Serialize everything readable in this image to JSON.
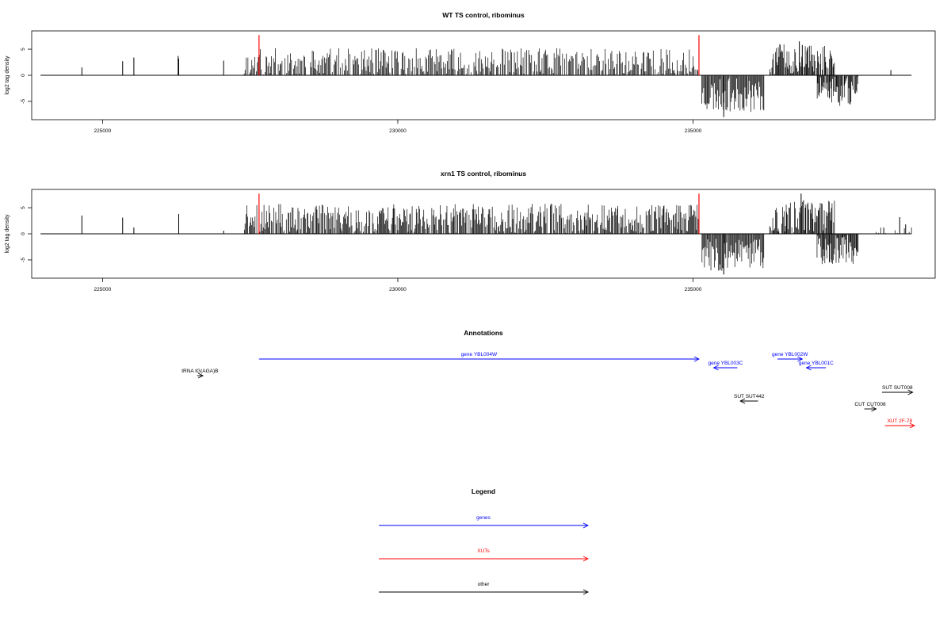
{
  "chart_data": [
    {
      "type": "bar",
      "title": "WT TS control, ribominus",
      "ylabel": "log2 tag density",
      "xlabel": "",
      "xlim": [
        223800,
        239100
      ],
      "ylim": [
        -8.5,
        8.5
      ],
      "xticks": [
        225000,
        230000,
        235000
      ],
      "xtick_labels": [
        "225000",
        "230000",
        "235000"
      ],
      "yticks": [
        -5,
        0,
        5
      ],
      "ytick_labels": [
        "-5",
        "0",
        "5"
      ],
      "baseline": {
        "x": [
          223950,
          238700
        ]
      },
      "markers": {
        "x": [
          227650,
          235100
        ],
        "top": 7.7,
        "color": "#ff0000"
      },
      "series": [
        {
          "color": "#000000",
          "x": [
            224650,
            225340,
            225530,
            226280,
            226290,
            227050,
            227640,
            238350
          ],
          "values": [
            1.5,
            2.7,
            3.4,
            3.7,
            3.2,
            2.8,
            3.5,
            1.0
          ]
        }
      ],
      "regions": [
        {
          "x": [
            227400,
            235100
          ],
          "step": 16,
          "mean": 2.0,
          "amp": 3.2,
          "seed": 11,
          "note": "dense plus-strand signal"
        },
        {
          "x": [
            235150,
            236200
          ],
          "step": 14,
          "mean": -3.8,
          "amp": 3.2,
          "seed": 23,
          "note": "minus-strand signal"
        },
        {
          "x": [
            236300,
            237400
          ],
          "step": 12,
          "mean": 2.8,
          "amp": 3.2,
          "seed": 37,
          "note": "plus-strand signal"
        },
        {
          "x": [
            237100,
            237800
          ],
          "step": 12,
          "mean": -3.0,
          "amp": 3.0,
          "seed": 51,
          "note": "minus-strand signal"
        }
      ],
      "peaks": [
        {
          "x": [
            236800,
            236850
          ],
          "values": [
            6.5,
            5.8
          ]
        },
        {
          "x": [
            235520
          ],
          "values": [
            -8.0
          ]
        }
      ]
    },
    {
      "type": "bar",
      "title": "xrn1 TS control, ribominus",
      "ylabel": "log2 tag density",
      "xlabel": "",
      "xlim": [
        223800,
        239100
      ],
      "ylim": [
        -8.5,
        8.5
      ],
      "xticks": [
        225000,
        230000,
        235000
      ],
      "xtick_labels": [
        "225000",
        "230000",
        "235000"
      ],
      "yticks": [
        -5,
        0,
        5
      ],
      "ytick_labels": [
        "-5",
        "0",
        "5"
      ],
      "baseline": {
        "x": [
          223950,
          238700
        ]
      },
      "markers": {
        "x": [
          227650,
          235100
        ],
        "top": 7.7,
        "color": "#ff0000"
      },
      "series": [
        {
          "color": "#000000",
          "x": [
            224650,
            225340,
            225530,
            226290,
            227050,
            238230,
            238500,
            238600
          ],
          "values": [
            3.5,
            3.1,
            1.2,
            3.8,
            0.6,
            1.2,
            3.2,
            1.8
          ]
        }
      ],
      "regions": [
        {
          "x": [
            227400,
            235100
          ],
          "step": 14,
          "mean": 2.4,
          "amp": 3.4,
          "seed": 71,
          "note": "dense plus-strand signal"
        },
        {
          "x": [
            235150,
            236200
          ],
          "step": 14,
          "mean": -4.0,
          "amp": 3.2,
          "seed": 83,
          "note": "minus-strand signal"
        },
        {
          "x": [
            236300,
            237400
          ],
          "step": 12,
          "mean": 3.0,
          "amp": 3.4,
          "seed": 97,
          "note": "plus-strand signal"
        },
        {
          "x": [
            237100,
            237800
          ],
          "step": 12,
          "mean": -3.2,
          "amp": 3.0,
          "seed": 101,
          "note": "minus-strand signal"
        },
        {
          "x": [
            238100,
            238700
          ],
          "step": 40,
          "mean": 0.8,
          "amp": 1.0,
          "seed": 113,
          "note": "sparse right signal"
        }
      ],
      "peaks": [
        {
          "x": [
            236830,
            236870
          ],
          "values": [
            7.7,
            6.4
          ]
        },
        {
          "x": [
            235520
          ],
          "values": [
            -7.8
          ]
        }
      ]
    }
  ],
  "annotations": {
    "title": "Annotations",
    "items": [
      {
        "label": "gene YBL004W",
        "start": 227650,
        "end": 235100,
        "strand": "+",
        "color": "#0000ff",
        "row": 0
      },
      {
        "label": "gene YBL003C",
        "start": 235350,
        "end": 235750,
        "strand": "-",
        "color": "#0000ff",
        "row": 1
      },
      {
        "label": "gene YBL002W",
        "start": 236430,
        "end": 236850,
        "strand": "+",
        "color": "#0000ff",
        "row": 0
      },
      {
        "label": "gene YBL001C",
        "start": 236920,
        "end": 237250,
        "strand": "-",
        "color": "#0000ff",
        "row": 1
      },
      {
        "label": "tRNA tG(AGA)B",
        "start": 226600,
        "end": 226700,
        "strand": "+",
        "color": "#000000",
        "row": 2
      },
      {
        "label": "SUT SUT442",
        "start": 235800,
        "end": 236100,
        "strand": "-",
        "color": "#000000",
        "row": 3
      },
      {
        "label": "SUT SUT008",
        "start": 238200,
        "end": 238720,
        "strand": "+",
        "color": "#000000",
        "row": 4
      },
      {
        "label": "CUT CUT008",
        "start": 237900,
        "end": 238100,
        "strand": "+",
        "color": "#000000",
        "row": 5
      },
      {
        "label": "XUT 2F-78",
        "start": 238250,
        "end": 238750,
        "strand": "+",
        "color": "#ff0000",
        "row": 6
      }
    ]
  },
  "legend": {
    "title": "Legend",
    "items": [
      {
        "label": "genes",
        "color": "#0000ff"
      },
      {
        "label": "XUTs",
        "color": "#ff0000"
      },
      {
        "label": "other",
        "color": "#000000"
      }
    ]
  }
}
